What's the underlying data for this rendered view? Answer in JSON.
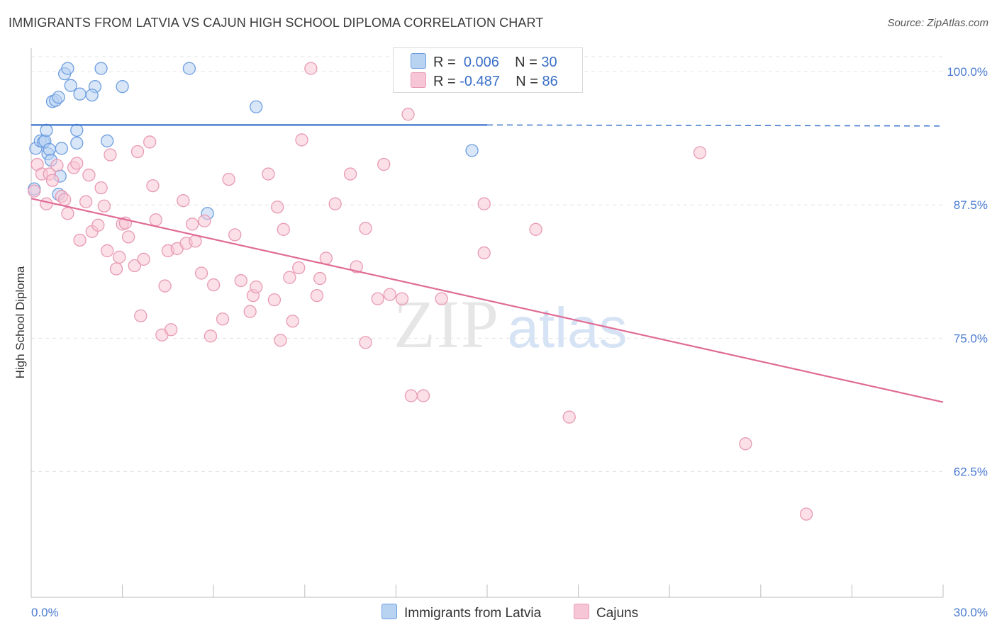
{
  "title": "IMMIGRANTS FROM LATVIA VS CAJUN HIGH SCHOOL DIPLOMA CORRELATION CHART",
  "source": "Source: ZipAtlas.com",
  "watermark": {
    "zip": "ZIP",
    "atlas": "atlas"
  },
  "colors": {
    "latvia_fill": "#b8d2f2",
    "latvia_stroke": "#6d9ee0",
    "latvia_line": "#3a73cc",
    "cajun_fill": "#f7c6d6",
    "cajun_stroke": "#e89ab4",
    "cajun_line": "#e06b95",
    "tick": "#4a7bd0",
    "grid": "#e3e3e3"
  },
  "legend": {
    "r_label": "R =",
    "n_label": "N =",
    "series": [
      {
        "r": "0.006",
        "n": "30"
      },
      {
        "r": "-0.487",
        "n": "86"
      }
    ]
  },
  "bottom_legend": [
    "Immigrants from Latvia",
    "Cajuns"
  ],
  "chart_data": {
    "type": "scatter",
    "xlabel": "",
    "ylabel": "High School Diploma",
    "xlim": [
      0,
      30
    ],
    "ylim": [
      50.7,
      102.2
    ],
    "x_tick_labels": [
      {
        "value": 0,
        "label": "0.0%"
      },
      {
        "value": 30,
        "label": "30.0%"
      }
    ],
    "y_tick_labels": [
      {
        "value": 100,
        "label": "100.0%"
      },
      {
        "value": 87.5,
        "label": "87.5%"
      },
      {
        "value": 75,
        "label": "75.0%"
      },
      {
        "value": 62.5,
        "label": "62.5%"
      }
    ],
    "series": [
      {
        "name": "Immigrants from Latvia",
        "trend": {
          "x": [
            0,
            15
          ],
          "y": [
            95.0,
            95.0
          ],
          "dashed_extension_to": 30,
          "dashed_y": 94.9
        },
        "points": [
          [
            0.15,
            92.8
          ],
          [
            0.3,
            93.5
          ],
          [
            0.4,
            93.4
          ],
          [
            0.45,
            93.5
          ],
          [
            0.5,
            94.5
          ],
          [
            0.55,
            92.3
          ],
          [
            0.6,
            92.7
          ],
          [
            0.65,
            91.7
          ],
          [
            0.7,
            97.2
          ],
          [
            0.8,
            97.3
          ],
          [
            0.9,
            97.6
          ],
          [
            0.95,
            90.2
          ],
          [
            0.9,
            88.5
          ],
          [
            1.1,
            99.8
          ],
          [
            1.2,
            100.3
          ],
          [
            1.3,
            98.7
          ],
          [
            1.5,
            94.5
          ],
          [
            1.5,
            93.3
          ],
          [
            1.6,
            97.9
          ],
          [
            2.1,
            98.6
          ],
          [
            2.3,
            100.3
          ],
          [
            2.5,
            93.5
          ],
          [
            3.0,
            98.6
          ],
          [
            5.2,
            100.3
          ],
          [
            5.8,
            86.7
          ],
          [
            7.4,
            96.7
          ],
          [
            14.5,
            92.6
          ],
          [
            1.0,
            92.8
          ],
          [
            0.1,
            89.0
          ],
          [
            2.0,
            97.8
          ]
        ]
      },
      {
        "name": "Cajuns",
        "trend": {
          "x": [
            0,
            30
          ],
          "y": [
            88.1,
            69.0
          ]
        },
        "points": [
          [
            0.1,
            88.8
          ],
          [
            0.2,
            91.3
          ],
          [
            0.35,
            90.4
          ],
          [
            0.5,
            87.6
          ],
          [
            0.6,
            90.4
          ],
          [
            0.7,
            89.8
          ],
          [
            0.85,
            91.2
          ],
          [
            1.0,
            88.3
          ],
          [
            1.1,
            88.0
          ],
          [
            1.2,
            86.7
          ],
          [
            1.4,
            91.0
          ],
          [
            1.5,
            91.4
          ],
          [
            1.6,
            84.2
          ],
          [
            1.8,
            87.8
          ],
          [
            1.9,
            90.3
          ],
          [
            2.0,
            85.0
          ],
          [
            2.2,
            85.6
          ],
          [
            2.3,
            89.1
          ],
          [
            2.4,
            87.4
          ],
          [
            2.5,
            83.2
          ],
          [
            2.6,
            92.2
          ],
          [
            2.8,
            81.5
          ],
          [
            2.9,
            82.6
          ],
          [
            3.0,
            85.7
          ],
          [
            3.1,
            85.8
          ],
          [
            3.2,
            84.5
          ],
          [
            3.4,
            81.8
          ],
          [
            3.5,
            92.5
          ],
          [
            3.6,
            77.1
          ],
          [
            3.7,
            82.4
          ],
          [
            3.9,
            93.4
          ],
          [
            4.0,
            89.3
          ],
          [
            4.1,
            86.1
          ],
          [
            4.3,
            75.3
          ],
          [
            4.4,
            79.9
          ],
          [
            4.5,
            83.2
          ],
          [
            4.6,
            75.8
          ],
          [
            4.8,
            83.4
          ],
          [
            5.0,
            87.9
          ],
          [
            5.1,
            83.9
          ],
          [
            5.3,
            85.7
          ],
          [
            5.4,
            84.1
          ],
          [
            5.6,
            81.1
          ],
          [
            5.7,
            86.0
          ],
          [
            5.9,
            75.2
          ],
          [
            6.0,
            80.0
          ],
          [
            6.3,
            76.8
          ],
          [
            6.5,
            89.9
          ],
          [
            6.7,
            84.7
          ],
          [
            6.9,
            80.4
          ],
          [
            7.2,
            77.5
          ],
          [
            7.3,
            79.0
          ],
          [
            7.4,
            79.8
          ],
          [
            7.8,
            90.4
          ],
          [
            8.0,
            78.6
          ],
          [
            8.1,
            87.3
          ],
          [
            8.2,
            74.8
          ],
          [
            8.3,
            85.2
          ],
          [
            8.5,
            80.7
          ],
          [
            8.6,
            76.6
          ],
          [
            8.8,
            81.6
          ],
          [
            8.9,
            93.6
          ],
          [
            9.2,
            100.3
          ],
          [
            9.4,
            79.0
          ],
          [
            9.5,
            80.6
          ],
          [
            9.7,
            82.5
          ],
          [
            10.0,
            87.6
          ],
          [
            10.5,
            90.4
          ],
          [
            10.7,
            81.7
          ],
          [
            11.0,
            74.6
          ],
          [
            11.0,
            85.3
          ],
          [
            11.4,
            78.7
          ],
          [
            11.6,
            91.3
          ],
          [
            11.8,
            79.1
          ],
          [
            12.2,
            78.7
          ],
          [
            12.4,
            96.0
          ],
          [
            12.5,
            69.6
          ],
          [
            12.9,
            69.6
          ],
          [
            13.5,
            78.7
          ],
          [
            14.9,
            87.6
          ],
          [
            14.9,
            83.0
          ],
          [
            16.6,
            85.2
          ],
          [
            17.7,
            67.6
          ],
          [
            22.0,
            92.4
          ],
          [
            23.5,
            65.1
          ],
          [
            25.5,
            58.5
          ]
        ]
      }
    ]
  }
}
